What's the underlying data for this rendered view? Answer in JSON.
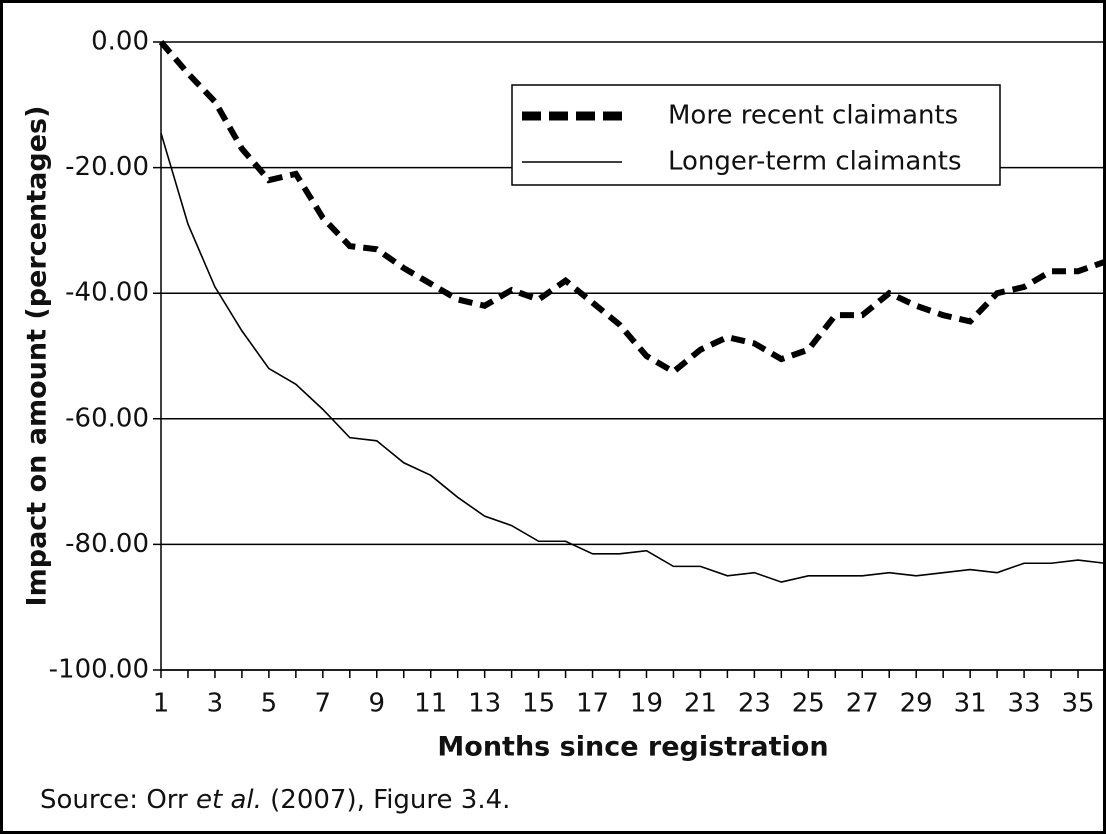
{
  "chart_data": {
    "type": "line",
    "y_label": "Impact on amount (percentages)",
    "x_label": "Months since registration",
    "source": [
      "Source: Orr ",
      "et al.",
      " (2007), Figure 3.4."
    ],
    "x": [
      1,
      2,
      3,
      4,
      5,
      6,
      7,
      8,
      9,
      10,
      11,
      12,
      13,
      14,
      15,
      16,
      17,
      18,
      19,
      20,
      21,
      22,
      23,
      24,
      25,
      26,
      27,
      28,
      29,
      30,
      31,
      32,
      33,
      34,
      35,
      36
    ],
    "series": [
      {
        "name": "More recent claimants",
        "color": "#000000",
        "dashed": true,
        "values": [
          0,
          -5,
          -9.5,
          -17,
          -22,
          -21,
          -28,
          -32.5,
          -33,
          -36,
          -38.5,
          -41,
          -42,
          -39.5,
          -41,
          -38,
          -41.5,
          -45,
          -50,
          -52.5,
          -49,
          -47,
          -48,
          -50.5,
          -49,
          -43.5,
          -43.5,
          -40,
          -42,
          -43.5,
          -44.5,
          -40,
          -39,
          -36.5,
          -36.5,
          -35
        ]
      },
      {
        "name": "Longer-term claimants",
        "color": "#000000",
        "dashed": false,
        "values": [
          -14.5,
          -29,
          -39,
          -46,
          -52,
          -54.5,
          -58.5,
          -63,
          -63.5,
          -67,
          -69,
          -72.5,
          -75.5,
          -77,
          -79.5,
          -79.5,
          -81.5,
          -81.5,
          -81,
          -83.5,
          -83.5,
          -85,
          -84.5,
          -86,
          -85,
          -85,
          -85,
          -84.5,
          -85,
          -84.5,
          -84,
          -84.5,
          -83,
          -83,
          -82.5,
          -83
        ]
      }
    ],
    "xlim": [
      1,
      36
    ],
    "xticks": [
      1,
      3,
      5,
      7,
      9,
      11,
      13,
      15,
      17,
      19,
      21,
      23,
      25,
      27,
      29,
      31,
      33,
      35
    ],
    "ylim": [
      -100,
      0
    ],
    "yticks": [
      {
        "value": 0,
        "label": "0.00"
      },
      {
        "value": -20,
        "label": "-20.00"
      },
      {
        "value": -40,
        "label": "-40.00"
      },
      {
        "value": -60,
        "label": "-60.00"
      },
      {
        "value": -80,
        "label": "-80.00"
      },
      {
        "value": -100,
        "label": "-100.00"
      }
    ],
    "grid": true
  }
}
